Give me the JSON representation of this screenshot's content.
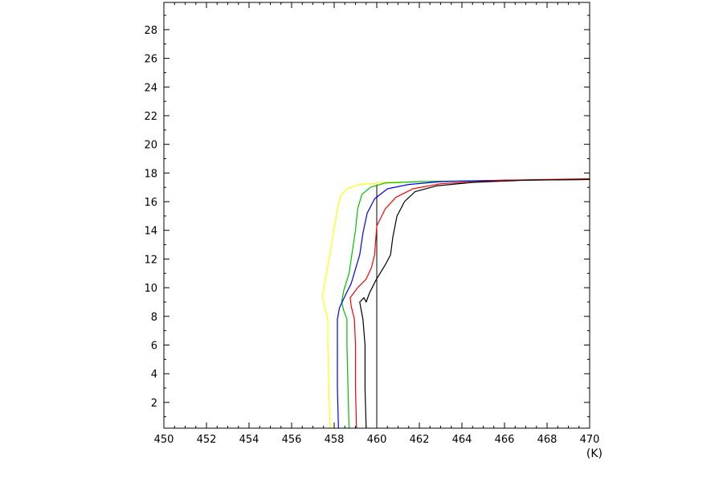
{
  "chart_data": {
    "type": "line",
    "xlabel": "(K)",
    "ylabel": "",
    "xlim": [
      450,
      470
    ],
    "ylim": [
      0.2,
      29.9
    ],
    "x_ticks": [
      450,
      452,
      454,
      456,
      458,
      460,
      462,
      464,
      466,
      468,
      470
    ],
    "y_ticks": [
      2,
      4,
      6,
      8,
      10,
      12,
      14,
      16,
      18,
      20,
      22,
      24,
      26,
      28
    ],
    "grid": false,
    "reference_line": {
      "x": 460,
      "y_range": [
        0.2,
        17.2
      ],
      "color": "#000000"
    },
    "series": [
      {
        "color": "#ffff00",
        "points": [
          [
            457.8,
            0.2
          ],
          [
            457.75,
            3
          ],
          [
            457.7,
            6
          ],
          [
            457.7,
            7.8
          ],
          [
            457.6,
            8.4
          ],
          [
            457.5,
            9.0
          ],
          [
            457.45,
            9.4
          ],
          [
            457.55,
            10.3
          ],
          [
            457.7,
            11.5
          ],
          [
            457.85,
            12.8
          ],
          [
            458.0,
            14.2
          ],
          [
            458.15,
            15.5
          ],
          [
            458.3,
            16.4
          ],
          [
            458.6,
            16.9
          ],
          [
            459.2,
            17.2
          ],
          [
            460.5,
            17.35
          ],
          [
            463,
            17.42
          ],
          [
            466,
            17.5
          ],
          [
            470,
            17.55
          ]
        ]
      },
      {
        "color": "#00c000",
        "points": [
          [
            458.7,
            0.2
          ],
          [
            458.65,
            3
          ],
          [
            458.6,
            6
          ],
          [
            458.6,
            7.8
          ],
          [
            458.45,
            8.4
          ],
          [
            458.35,
            9.0
          ],
          [
            458.45,
            9.8
          ],
          [
            458.7,
            11.0
          ],
          [
            458.85,
            12.5
          ],
          [
            459.0,
            14.0
          ],
          [
            459.1,
            15.5
          ],
          [
            459.3,
            16.5
          ],
          [
            459.7,
            17.0
          ],
          [
            460.4,
            17.3
          ],
          [
            462,
            17.4
          ],
          [
            466,
            17.5
          ],
          [
            470,
            17.55
          ]
        ]
      },
      {
        "color": "#0000ff",
        "points": [
          [
            458.2,
            0.2
          ],
          [
            458.15,
            3
          ],
          [
            458.15,
            6
          ],
          [
            458.15,
            7.8
          ],
          [
            458.25,
            8.6
          ],
          [
            458.5,
            9.4
          ],
          [
            458.8,
            10.3
          ],
          [
            459.0,
            11.3
          ],
          [
            459.2,
            12.3
          ],
          [
            459.35,
            13.8
          ],
          [
            459.55,
            15.2
          ],
          [
            459.9,
            16.2
          ],
          [
            460.5,
            16.9
          ],
          [
            461.5,
            17.2
          ],
          [
            463,
            17.4
          ],
          [
            466,
            17.5
          ],
          [
            470,
            17.55
          ]
        ]
      },
      {
        "color": "#ff0000",
        "points": [
          [
            459.05,
            0.2
          ],
          [
            459.0,
            3
          ],
          [
            459.0,
            6
          ],
          [
            458.95,
            7.8
          ],
          [
            458.8,
            8.7
          ],
          [
            458.75,
            9.3
          ],
          [
            459.1,
            10.0
          ],
          [
            459.5,
            10.6
          ],
          [
            459.75,
            11.4
          ],
          [
            459.9,
            12.3
          ],
          [
            460.0,
            14.3
          ],
          [
            460.4,
            15.5
          ],
          [
            460.9,
            16.3
          ],
          [
            461.7,
            16.9
          ],
          [
            463,
            17.25
          ],
          [
            466,
            17.5
          ],
          [
            470,
            17.6
          ]
        ]
      },
      {
        "color": "#000000",
        "points": [
          [
            459.5,
            0.2
          ],
          [
            459.45,
            3
          ],
          [
            459.45,
            6
          ],
          [
            459.35,
            7.8
          ],
          [
            459.25,
            8.6
          ],
          [
            459.2,
            9.0
          ],
          [
            459.4,
            9.3
          ],
          [
            459.5,
            9.0
          ],
          [
            459.65,
            9.6
          ],
          [
            459.95,
            10.5
          ],
          [
            460.4,
            11.6
          ],
          [
            460.65,
            12.3
          ],
          [
            460.75,
            13.5
          ],
          [
            460.95,
            15.0
          ],
          [
            461.3,
            16.0
          ],
          [
            461.8,
            16.7
          ],
          [
            462.8,
            17.1
          ],
          [
            464.5,
            17.35
          ],
          [
            467,
            17.5
          ],
          [
            470,
            17.55
          ]
        ]
      }
    ]
  }
}
